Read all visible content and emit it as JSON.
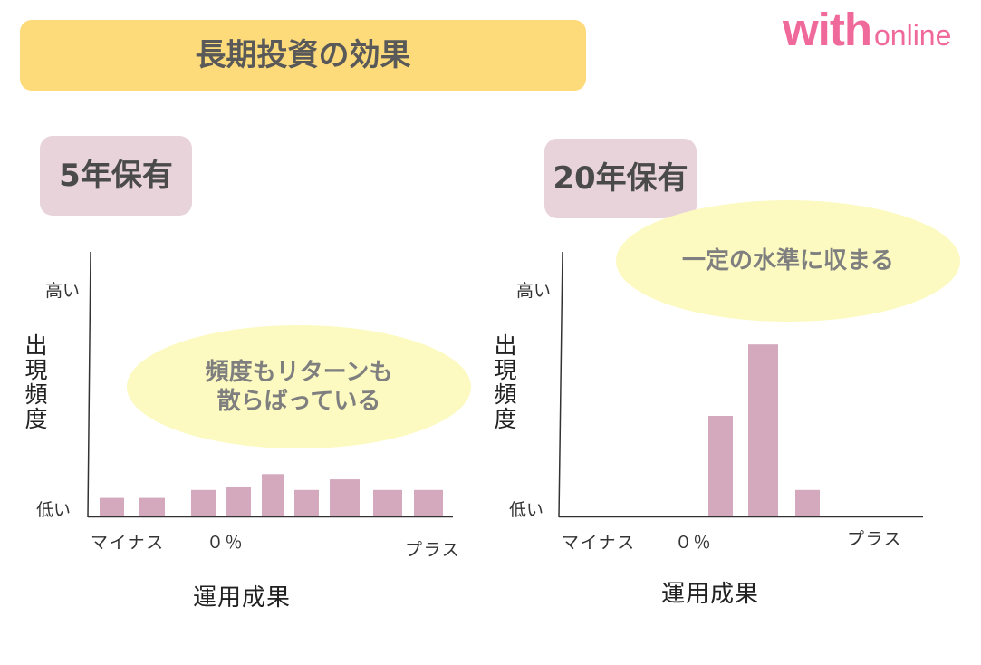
{
  "title": "長期投資の効果",
  "logo": {
    "brand": "with",
    "suffix": "online"
  },
  "colors": {
    "title_bg": "#FDDB7B",
    "heading": "#595959",
    "label_bg": "#E8D3DB",
    "label_text": "#4A4A4A",
    "bubble": "#FCFAC0",
    "bubble_text": "#7F7F7F",
    "bar": "#D4A8BD",
    "axis": "#333333",
    "logo": "#F0699B"
  },
  "chart_data": [
    {
      "type": "bar",
      "title": "5年保有",
      "ylabel": "出現頻度",
      "y_tick_labels": [
        "低い",
        "高い"
      ],
      "xlabel": "運用成果",
      "x_tick_labels": [
        "マイナス",
        "０％",
        "プラス"
      ],
      "ylim": [
        0,
        1
      ],
      "values": [
        0.07,
        0.07,
        0.1,
        0.11,
        0.16,
        0.1,
        0.14,
        0.1,
        0.1
      ],
      "grid": false,
      "annotation": [
        "頻度もリターンも",
        "散らばっている"
      ]
    },
    {
      "type": "bar",
      "title": "20年保有",
      "ylabel": "出現頻度",
      "y_tick_labels": [
        "低い",
        "高い"
      ],
      "xlabel": "運用成果",
      "x_tick_labels": [
        "マイナス",
        "０％",
        "プラス"
      ],
      "ylim": [
        0,
        1
      ],
      "values": [
        0.38,
        0.65,
        0.1
      ],
      "grid": false,
      "annotation": [
        "一定の水準に収まる"
      ]
    }
  ]
}
